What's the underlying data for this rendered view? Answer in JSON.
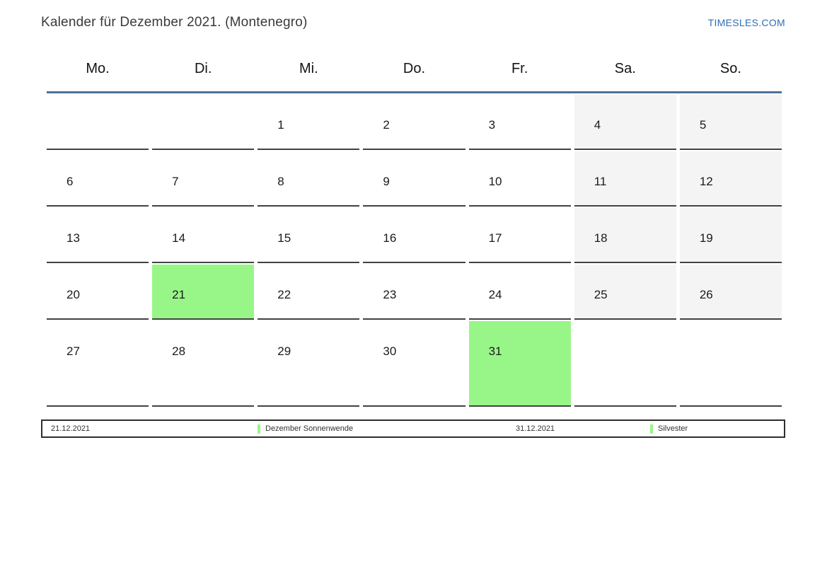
{
  "title": "Kalender für Dezember 2021. (Montenegro)",
  "brand": {
    "label": "TIMESLES.COM"
  },
  "weekdays": [
    "Mo.",
    "Di.",
    "Mi.",
    "Do.",
    "Fr.",
    "Sa.",
    "So."
  ],
  "weeks": [
    [
      {
        "day": "",
        "type": "empty"
      },
      {
        "day": "",
        "type": "empty"
      },
      {
        "day": "1",
        "type": "normal"
      },
      {
        "day": "2",
        "type": "normal"
      },
      {
        "day": "3",
        "type": "normal"
      },
      {
        "day": "4",
        "type": "weekend"
      },
      {
        "day": "5",
        "type": "weekend"
      }
    ],
    [
      {
        "day": "6",
        "type": "normal"
      },
      {
        "day": "7",
        "type": "normal"
      },
      {
        "day": "8",
        "type": "normal"
      },
      {
        "day": "9",
        "type": "normal"
      },
      {
        "day": "10",
        "type": "normal"
      },
      {
        "day": "11",
        "type": "weekend"
      },
      {
        "day": "12",
        "type": "weekend"
      }
    ],
    [
      {
        "day": "13",
        "type": "normal"
      },
      {
        "day": "14",
        "type": "normal"
      },
      {
        "day": "15",
        "type": "normal"
      },
      {
        "day": "16",
        "type": "normal"
      },
      {
        "day": "17",
        "type": "normal"
      },
      {
        "day": "18",
        "type": "weekend"
      },
      {
        "day": "19",
        "type": "weekend"
      }
    ],
    [
      {
        "day": "20",
        "type": "normal"
      },
      {
        "day": "21",
        "type": "event"
      },
      {
        "day": "22",
        "type": "normal"
      },
      {
        "day": "23",
        "type": "normal"
      },
      {
        "day": "24",
        "type": "normal"
      },
      {
        "day": "25",
        "type": "weekend"
      },
      {
        "day": "26",
        "type": "weekend"
      }
    ],
    [
      {
        "day": "27",
        "type": "normal"
      },
      {
        "day": "28",
        "type": "normal"
      },
      {
        "day": "29",
        "type": "normal"
      },
      {
        "day": "30",
        "type": "normal"
      },
      {
        "day": "31",
        "type": "event"
      },
      {
        "day": "",
        "type": "empty"
      },
      {
        "day": "",
        "type": "empty"
      }
    ]
  ],
  "legend": {
    "items": [
      {
        "kind": "date",
        "text": "21.12.2021"
      },
      {
        "kind": "event",
        "text": "Dezember Sonnenwende"
      },
      {
        "kind": "date",
        "text": "31.12.2021"
      },
      {
        "kind": "event",
        "text": "Silvester"
      }
    ]
  },
  "colors": {
    "event_green": "#98f688",
    "weekend_gray": "#f4f4f4",
    "header_line": "#4e7198",
    "brand_blue": "#2f6eb5"
  }
}
